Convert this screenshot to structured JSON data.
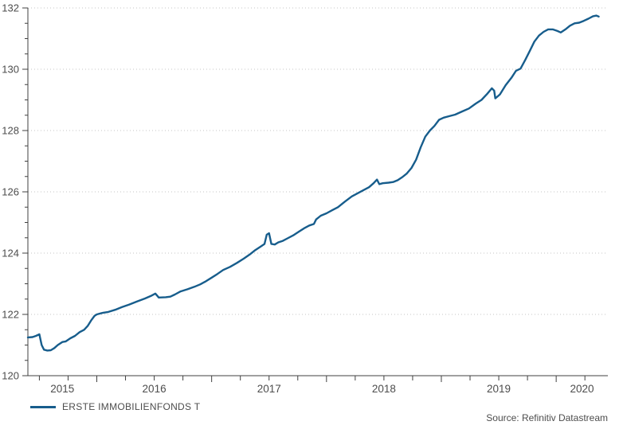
{
  "legend": {
    "label": "ERSTE IMMOBILIENFONDS T"
  },
  "source": {
    "text": "Source: Refinitiv Datastream"
  },
  "colors": {
    "line": "#175d8c",
    "axis": "#404040",
    "grid": "#c6c6c6",
    "tick_text": "#4d4d4d",
    "background": "#ffffff"
  },
  "chart_data": {
    "type": "line",
    "title": "",
    "xlabel": "",
    "ylabel": "",
    "legend_position": "bottom-left",
    "grid": "horizontal dotted at major y ticks",
    "x_axis": {
      "kind": "time-years",
      "visible_min": 2015.4,
      "visible_max": 2020.45,
      "minor_tick_interval": 0.25,
      "year_labels": [
        "2015",
        "2016",
        "2017",
        "2018",
        "2019",
        "2020"
      ]
    },
    "y_axis": {
      "min": 120,
      "max": 132,
      "major_step": 2,
      "minor_step": 0.5,
      "tick_labels": [
        "120",
        "122",
        "124",
        "126",
        "128",
        "130",
        "132"
      ]
    },
    "series": [
      {
        "name": "ERSTE IMMOBILIENFONDS T",
        "color": "#175d8c",
        "points": [
          [
            2015.4,
            121.25
          ],
          [
            2015.44,
            121.26
          ],
          [
            2015.47,
            121.3
          ],
          [
            2015.5,
            121.35
          ],
          [
            2015.52,
            121.0
          ],
          [
            2015.54,
            120.85
          ],
          [
            2015.57,
            120.82
          ],
          [
            2015.6,
            120.83
          ],
          [
            2015.63,
            120.9
          ],
          [
            2015.66,
            121.0
          ],
          [
            2015.7,
            121.1
          ],
          [
            2015.73,
            121.12
          ],
          [
            2015.77,
            121.22
          ],
          [
            2015.81,
            121.3
          ],
          [
            2015.85,
            121.42
          ],
          [
            2015.89,
            121.5
          ],
          [
            2015.92,
            121.62
          ],
          [
            2015.95,
            121.8
          ],
          [
            2015.98,
            121.95
          ],
          [
            2016.0,
            122.0
          ],
          [
            2016.05,
            122.05
          ],
          [
            2016.1,
            122.08
          ],
          [
            2016.16,
            122.15
          ],
          [
            2016.22,
            122.24
          ],
          [
            2016.28,
            122.32
          ],
          [
            2016.35,
            122.42
          ],
          [
            2016.42,
            122.52
          ],
          [
            2016.47,
            122.6
          ],
          [
            2016.51,
            122.68
          ],
          [
            2016.54,
            122.55
          ],
          [
            2016.6,
            122.56
          ],
          [
            2016.64,
            122.58
          ],
          [
            2016.68,
            122.65
          ],
          [
            2016.73,
            122.75
          ],
          [
            2016.79,
            122.82
          ],
          [
            2016.85,
            122.9
          ],
          [
            2016.9,
            122.98
          ],
          [
            2016.95,
            123.08
          ],
          [
            2017.0,
            123.2
          ],
          [
            2017.05,
            123.32
          ],
          [
            2017.1,
            123.45
          ],
          [
            2017.16,
            123.55
          ],
          [
            2017.22,
            123.68
          ],
          [
            2017.28,
            123.82
          ],
          [
            2017.33,
            123.95
          ],
          [
            2017.38,
            124.1
          ],
          [
            2017.43,
            124.22
          ],
          [
            2017.46,
            124.3
          ],
          [
            2017.48,
            124.6
          ],
          [
            2017.5,
            124.65
          ],
          [
            2017.52,
            124.3
          ],
          [
            2017.55,
            124.28
          ],
          [
            2017.58,
            124.35
          ],
          [
            2017.62,
            124.4
          ],
          [
            2017.66,
            124.48
          ],
          [
            2017.71,
            124.58
          ],
          [
            2017.76,
            124.7
          ],
          [
            2017.81,
            124.82
          ],
          [
            2017.85,
            124.9
          ],
          [
            2017.89,
            124.95
          ],
          [
            2017.91,
            125.1
          ],
          [
            2017.95,
            125.22
          ],
          [
            2018.0,
            125.3
          ],
          [
            2018.05,
            125.4
          ],
          [
            2018.1,
            125.5
          ],
          [
            2018.16,
            125.68
          ],
          [
            2018.22,
            125.85
          ],
          [
            2018.27,
            125.95
          ],
          [
            2018.32,
            126.05
          ],
          [
            2018.37,
            126.15
          ],
          [
            2018.41,
            126.28
          ],
          [
            2018.44,
            126.4
          ],
          [
            2018.46,
            126.25
          ],
          [
            2018.49,
            126.28
          ],
          [
            2018.54,
            126.3
          ],
          [
            2018.58,
            126.32
          ],
          [
            2018.62,
            126.38
          ],
          [
            2018.66,
            126.48
          ],
          [
            2018.7,
            126.6
          ],
          [
            2018.74,
            126.78
          ],
          [
            2018.78,
            127.05
          ],
          [
            2018.82,
            127.45
          ],
          [
            2018.86,
            127.8
          ],
          [
            2018.9,
            128.0
          ],
          [
            2018.94,
            128.15
          ],
          [
            2018.98,
            128.35
          ],
          [
            2019.02,
            128.42
          ],
          [
            2019.07,
            128.47
          ],
          [
            2019.12,
            128.52
          ],
          [
            2019.18,
            128.62
          ],
          [
            2019.24,
            128.72
          ],
          [
            2019.3,
            128.88
          ],
          [
            2019.35,
            129.0
          ],
          [
            2019.4,
            129.2
          ],
          [
            2019.44,
            129.38
          ],
          [
            2019.46,
            129.3
          ],
          [
            2019.47,
            129.05
          ],
          [
            2019.51,
            129.18
          ],
          [
            2019.56,
            129.48
          ],
          [
            2019.61,
            129.72
          ],
          [
            2019.65,
            129.95
          ],
          [
            2019.69,
            130.02
          ],
          [
            2019.73,
            130.3
          ],
          [
            2019.77,
            130.6
          ],
          [
            2019.81,
            130.9
          ],
          [
            2019.85,
            131.1
          ],
          [
            2019.89,
            131.22
          ],
          [
            2019.93,
            131.3
          ],
          [
            2019.97,
            131.3
          ],
          [
            2020.01,
            131.25
          ],
          [
            2020.04,
            131.2
          ],
          [
            2020.08,
            131.3
          ],
          [
            2020.12,
            131.42
          ],
          [
            2020.16,
            131.5
          ],
          [
            2020.2,
            131.52
          ],
          [
            2020.24,
            131.58
          ],
          [
            2020.28,
            131.65
          ],
          [
            2020.32,
            131.73
          ],
          [
            2020.35,
            131.75
          ],
          [
            2020.37,
            131.72
          ]
        ]
      }
    ]
  }
}
